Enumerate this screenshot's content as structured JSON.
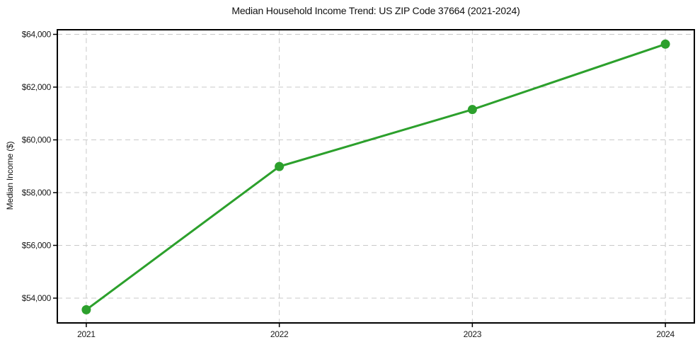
{
  "chart_data": {
    "type": "line",
    "title": "Median Household Income Trend: US ZIP Code 37664 (2021-2024)",
    "xlabel": "",
    "ylabel": "Median Income ($)",
    "x": [
      2021,
      2022,
      2023,
      2024
    ],
    "xtick_labels": [
      "2021",
      "2022",
      "2023",
      "2024"
    ],
    "series": [
      {
        "name": "Median household income",
        "values": [
          53560,
          58990,
          61150,
          63630
        ],
        "color": "#2ca02c",
        "marker": "circle"
      }
    ],
    "xlim": [
      2020.85,
      2024.15
    ],
    "ylim": [
      53060,
      64175
    ],
    "ytick_values": [
      54000,
      56000,
      58000,
      60000,
      62000,
      64000
    ],
    "ytick_labels": [
      "$54,000",
      "$56,000",
      "$58,000",
      "$60,000",
      "$62,000",
      "$64,000"
    ],
    "grid": true,
    "grid_style": "dashed",
    "legend_position": "none",
    "colors": {
      "line": "#2ca02c",
      "grid": "#c9c9c9",
      "axis": "#000000",
      "background": "#ffffff",
      "text": "#1a1a1a"
    }
  }
}
